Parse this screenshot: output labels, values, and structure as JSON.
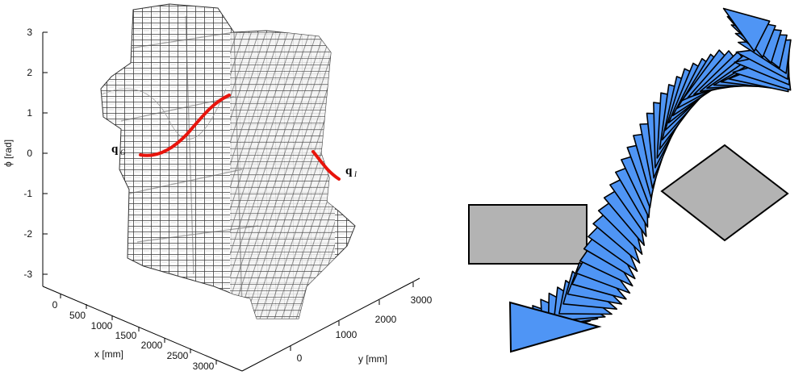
{
  "left_plot": {
    "z_axis": {
      "label": "ϕ [rad]",
      "ticks": [
        "3",
        "2",
        "1",
        "0",
        "-1",
        "-2",
        "-3"
      ]
    },
    "x_axis": {
      "label": "x [mm]",
      "ticks": [
        "0",
        "500",
        "1000",
        "1500",
        "2000",
        "2500",
        "3000"
      ]
    },
    "y_axis": {
      "label": "y [mm]",
      "ticks": [
        "0",
        "1000",
        "2000",
        "3000"
      ]
    },
    "start_label": {
      "main": "q",
      "sub": "G"
    },
    "goal_label": {
      "main": "q",
      "sub": "I"
    },
    "colors": {
      "path": "#e8140c",
      "voxel_stroke": "#333333",
      "voxel_fill": "#ffffff"
    }
  },
  "right_scene": {
    "colors": {
      "robot_fill": "#4f95f5",
      "robot_stroke": "#000000",
      "obstacle_fill": "#b3b3b3",
      "obstacle_stroke": "#000000"
    }
  }
}
